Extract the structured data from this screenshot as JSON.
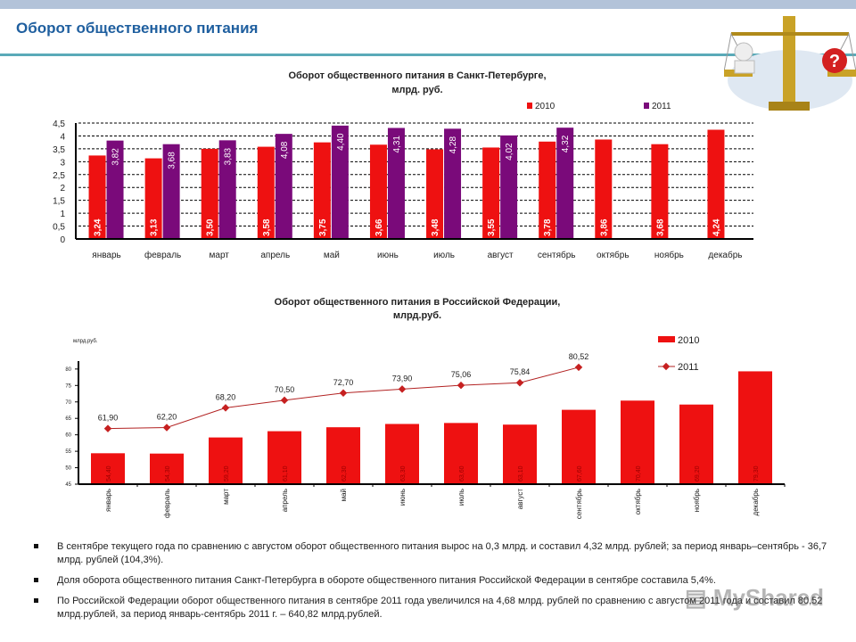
{
  "header": {
    "title": "Оборот общественного питания"
  },
  "colors": {
    "red": "#ee1111",
    "purple": "#7a0a7a",
    "line": "#b22222",
    "title": "#1f5f9f",
    "accent_rule": "#5aaab8"
  },
  "logo": {
    "icon": "scales-of-justice-question-icon"
  },
  "chart_data": [
    {
      "type": "bar",
      "title": "Оборот общественного питания в Санкт-Петербурге,",
      "subtitle": "млрд. руб.",
      "categories": [
        "январь",
        "февраль",
        "март",
        "апрель",
        "май",
        "июнь",
        "июль",
        "август",
        "сентябрь",
        "октябрь",
        "ноябрь",
        "декабрь"
      ],
      "series": [
        {
          "name": "2010",
          "color": "#ee1111",
          "values": [
            3.24,
            3.13,
            3.5,
            3.58,
            3.75,
            3.66,
            3.48,
            3.55,
            3.78,
            3.86,
            3.68,
            4.24
          ],
          "labels": [
            "3,24",
            "3,13",
            "3,50",
            "3,58",
            "3,75",
            "3,66",
            "3,48",
            "3,55",
            "3,78",
            "3,86",
            "3,68",
            "4,24"
          ]
        },
        {
          "name": "2011",
          "color": "#7a0a7a",
          "values": [
            3.82,
            3.68,
            3.83,
            4.08,
            4.4,
            4.31,
            4.28,
            4.02,
            4.32,
            null,
            null,
            null
          ],
          "labels": [
            "3,82",
            "3,68",
            "3,83",
            "4,08",
            "4,40",
            "4,31",
            "4,28",
            "4,02",
            "4,32",
            "",
            "",
            ""
          ]
        }
      ],
      "yticks": [
        "0",
        "0,5",
        "1",
        "1,5",
        "2",
        "2,5",
        "3",
        "3,5",
        "4",
        "4,5"
      ],
      "ylim": [
        0,
        4.5
      ],
      "grid": true,
      "legend": "top-right"
    },
    {
      "type": "bar+line",
      "title": "Оборот общественного питания в Российской Федерации,",
      "subtitle": "млрд.руб.",
      "ylabel": "млрд.руб.",
      "categories": [
        "январь",
        "февраль",
        "март",
        "апрель",
        "май",
        "июнь",
        "июль",
        "август",
        "сентябрь",
        "октябрь",
        "ноябрь",
        "декабрь"
      ],
      "series": [
        {
          "name": "2010",
          "kind": "bar",
          "color": "#ee1111",
          "values": [
            54.4,
            54.3,
            59.2,
            61.1,
            62.3,
            63.3,
            63.6,
            63.1,
            67.6,
            70.4,
            69.2,
            79.3
          ],
          "labels": [
            "54,40",
            "54,30",
            "59,20",
            "61,10",
            "62,30",
            "63,30",
            "63,60",
            "63,10",
            "67,60",
            "70,40",
            "69,20",
            "79,30"
          ]
        },
        {
          "name": "2011",
          "kind": "line",
          "color": "#b22222",
          "values": [
            61.9,
            62.2,
            68.2,
            70.5,
            72.7,
            73.9,
            75.06,
            75.84,
            80.52,
            null,
            null,
            null
          ],
          "labels": [
            "61,90",
            "62,20",
            "68,20",
            "70,50",
            "72,70",
            "73,90",
            "75,06",
            "75,84",
            "80,52",
            "",
            "",
            ""
          ]
        }
      ],
      "yticks": [
        "45",
        "50",
        "55",
        "60",
        "65",
        "70",
        "75",
        "80"
      ],
      "ylim": [
        45,
        82
      ],
      "grid": false,
      "legend": "top-right"
    }
  ],
  "bullets": [
    "В сентябре текущего года по сравнению с августом оборот общественного питания вырос на 0,3 млрд. и составил 4,32 млрд. рублей;  за период январь–сентябрь - 36,7 млрд. рублей (104,3%).",
    "Доля оборота общественного питания Санкт-Петербурга в обороте общественного питания Российской Федерации в сентябре составила 5,4%.",
    "По Российской Федерации оборот общественного питания в сентябре 2011 года увеличился на 4,68 млрд. рублей по сравнению с августом 2011 года и составил 80,52 млрд.рублей, за период  январь-сентябрь 2011 г. – 640,82 млрд.рублей."
  ],
  "watermark": "MyShared"
}
